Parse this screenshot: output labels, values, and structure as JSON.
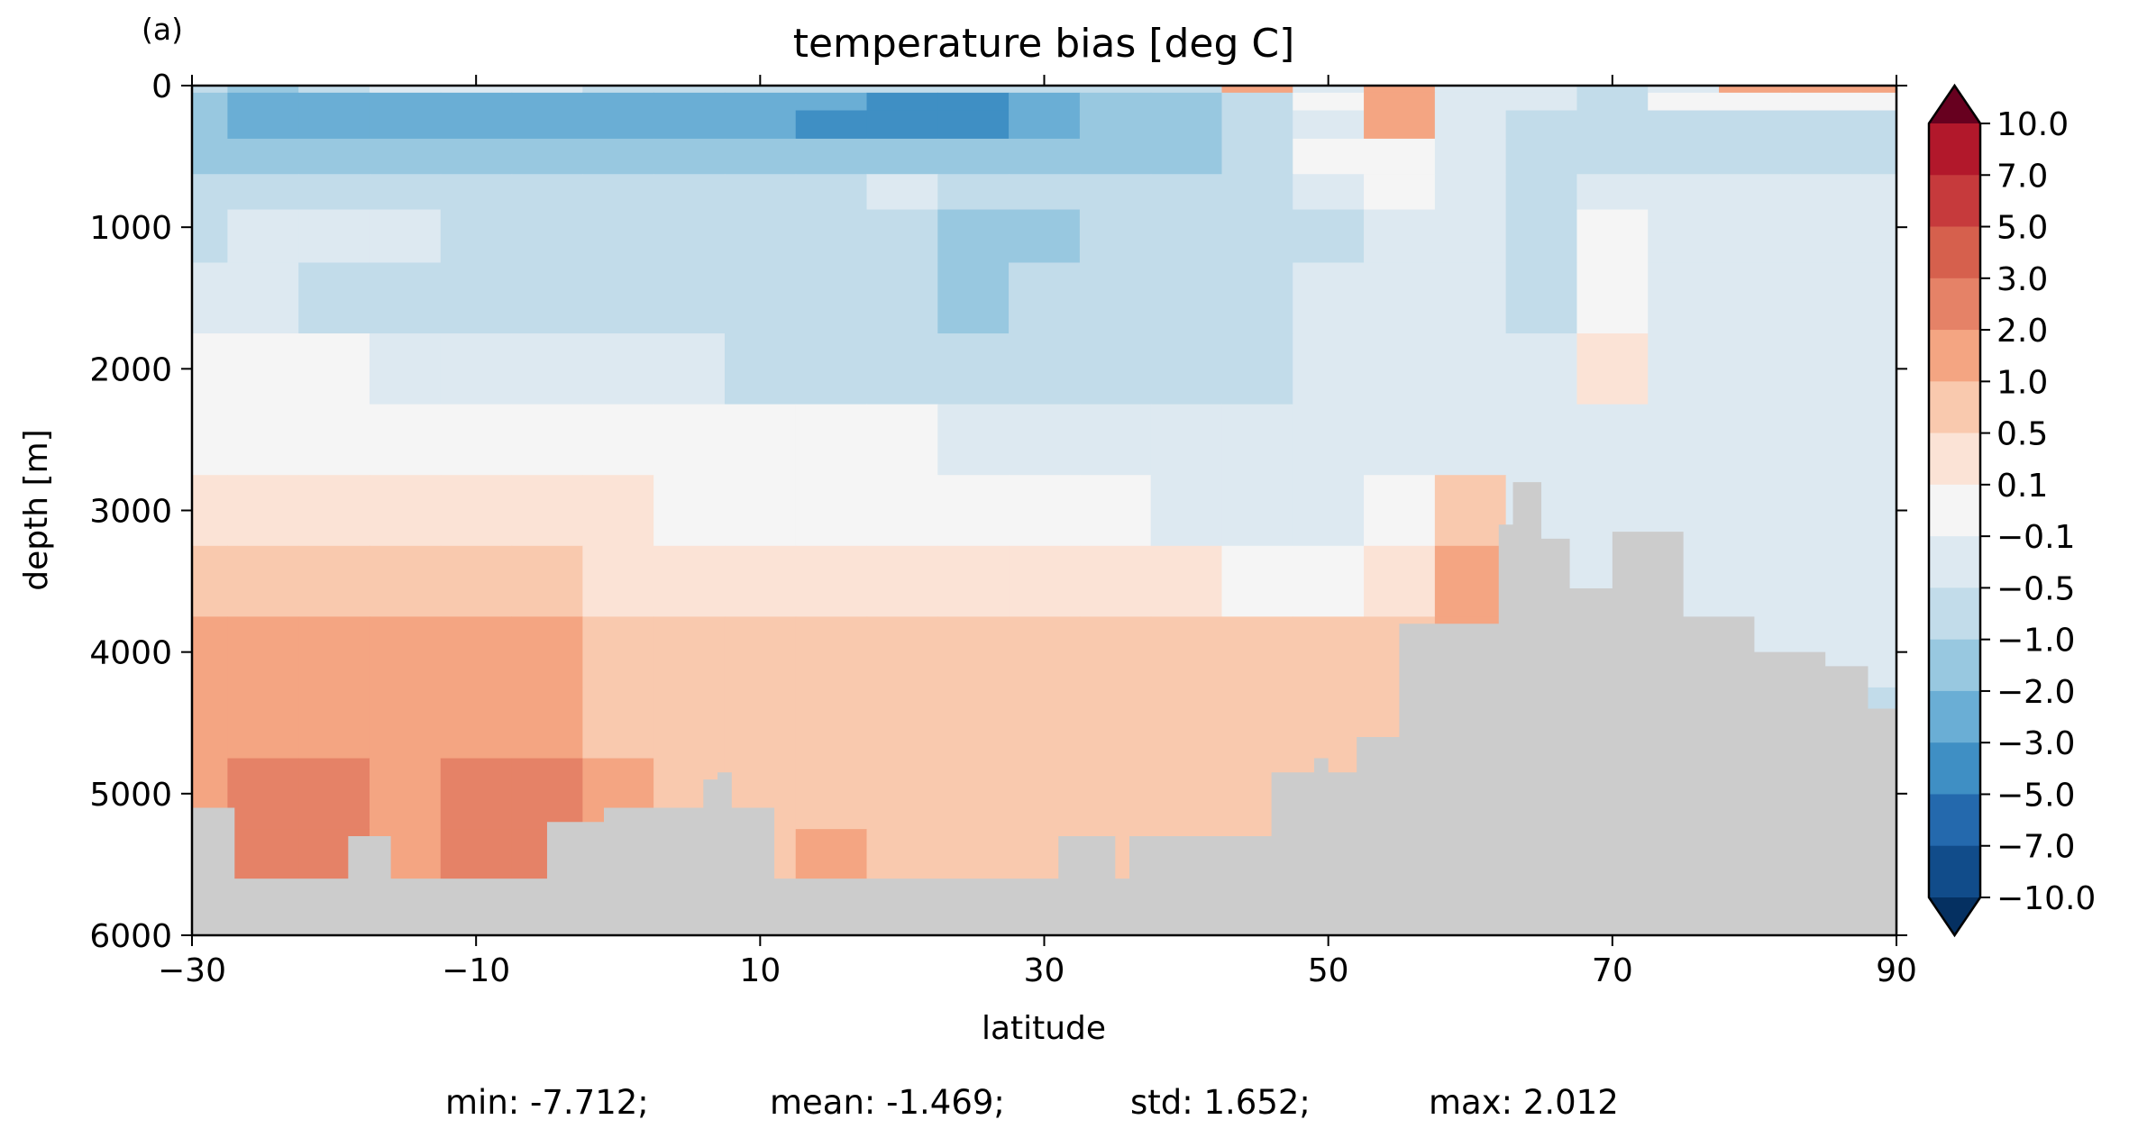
{
  "panel_label": "(a)",
  "chart_data": {
    "type": "heatmap",
    "title": "temperature bias [deg C]",
    "xlabel": "latitude",
    "ylabel": "depth [m]",
    "xlim": [
      -30,
      90
    ],
    "ylim": [
      6000,
      0
    ],
    "x_ticks": [
      "−30",
      "−10",
      "10",
      "30",
      "50",
      "70",
      "90"
    ],
    "x_tick_values": [
      -30,
      -10,
      10,
      30,
      50,
      70,
      90
    ],
    "y_ticks": [
      "0",
      "1000",
      "2000",
      "3000",
      "4000",
      "5000",
      "6000"
    ],
    "y_tick_values": [
      0,
      1000,
      2000,
      3000,
      4000,
      5000,
      6000
    ],
    "colorbar": {
      "levels": [
        "10.0",
        "7.0",
        "5.0",
        "3.0",
        "2.0",
        "1.0",
        "0.5",
        "0.1",
        "−0.1",
        "−0.5",
        "−1.0",
        "−2.0",
        "−3.0",
        "−5.0",
        "−7.0",
        "−10.0"
      ],
      "colors": [
        "#860a24",
        "#b2182b",
        "#c63a3c",
        "#d6604d",
        "#e58267",
        "#f4a582",
        "#f9c9ae",
        "#fbe3d6",
        "#f5f5f5",
        "#dde9f1",
        "#c2dcea",
        "#98c8e0",
        "#6aaed5",
        "#3f8fc4",
        "#2469ad",
        "#114c8a"
      ],
      "over_color": "#67001f",
      "under_color": "#053061",
      "extend": "both"
    },
    "land_color": "#cccccc",
    "stats": {
      "min": "min: -7.712;",
      "mean": "mean: -1.469;",
      "std": "std: 1.652;",
      "max": "max: 2.012"
    },
    "bias_field": {
      "latitudes": [
        -30,
        -25,
        -20,
        -15,
        -10,
        -5,
        0,
        5,
        10,
        15,
        20,
        25,
        30,
        35,
        40,
        45,
        50,
        55,
        60,
        65,
        70,
        75,
        80,
        85,
        90
      ],
      "depths": [
        0,
        100,
        250,
        500,
        750,
        1000,
        1500,
        2000,
        2500,
        3000,
        3500,
        4000,
        4500,
        5000,
        5500,
        6000
      ],
      "values": [
        [
          -1.5,
          -2.5,
          -1.5,
          -1.0,
          -1.0,
          -1.0,
          -1.5,
          -1.5,
          -1.5,
          -1.5,
          -1.5,
          -1.5,
          -1.5,
          -1.5,
          -1.5,
          0.8,
          -1.0,
          0.5,
          -1.0,
          -1.0,
          -1.5,
          -1.0,
          0.5,
          0.5,
          0.5
        ],
        [
          -2.5,
          -3.5,
          -4.0,
          -4.5,
          -5.0,
          -4.5,
          -4.0,
          -3.5,
          -4.0,
          -5.0,
          -5.5,
          -6.0,
          -4.0,
          -3.0,
          -2.5,
          -1.5,
          -0.5,
          0.8,
          -1.0,
          -1.0,
          -1.5,
          -0.5,
          -0.5,
          -0.3,
          -0.3
        ],
        [
          -2.5,
          -3.5,
          -4.0,
          -4.5,
          -4.5,
          -4.5,
          -4.5,
          -4.5,
          -5.0,
          -5.5,
          -6.5,
          -5.5,
          -4.0,
          -3.0,
          -2.5,
          -1.5,
          -1.0,
          0.6,
          -1.0,
          -1.5,
          -1.5,
          -1.5,
          -1.5,
          -1.5,
          -1.5
        ],
        [
          -2.5,
          -2.5,
          -2.5,
          -2.5,
          -2.5,
          -2.5,
          -2.5,
          -2.5,
          -3.0,
          -3.0,
          -3.0,
          -3.0,
          -2.5,
          -2.5,
          -2.5,
          -1.8,
          -0.5,
          -0.2,
          -1.0,
          -1.5,
          -1.5,
          -1.5,
          -1.5,
          -1.5,
          -1.5
        ],
        [
          -1.5,
          -1.5,
          -1.5,
          -1.5,
          -1.5,
          -1.5,
          -1.5,
          -1.5,
          -1.5,
          -1.5,
          -0.8,
          -1.5,
          -1.5,
          -1.5,
          -1.5,
          -1.5,
          -0.8,
          -0.3,
          -0.8,
          -1.5,
          -1.0,
          -0.8,
          -0.8,
          -0.8,
          -0.8
        ],
        [
          -1.5,
          -0.8,
          -0.8,
          -0.8,
          -1.5,
          -1.5,
          -1.5,
          -1.5,
          -1.5,
          -1.5,
          -1.5,
          -2.2,
          -2.5,
          -1.8,
          -1.5,
          -1.5,
          -1.5,
          -0.8,
          -0.8,
          -1.5,
          -0.5,
          -0.8,
          -0.8,
          -0.8,
          -0.8
        ],
        [
          -0.8,
          -0.8,
          -1.5,
          -1.5,
          -1.5,
          -1.5,
          -1.5,
          -1.5,
          -1.5,
          -1.5,
          -1.5,
          -2.6,
          -1.5,
          -1.5,
          -1.5,
          -1.5,
          -0.8,
          -0.8,
          -0.8,
          -1.5,
          -0.2,
          -0.8,
          -0.8,
          -0.8,
          -0.8
        ],
        [
          -0.3,
          -0.3,
          -0.3,
          -0.8,
          -0.8,
          -0.8,
          -0.8,
          -0.8,
          -1.5,
          -1.5,
          -1.5,
          -1.5,
          -1.5,
          -1.5,
          -1.5,
          -1.5,
          -0.8,
          -0.8,
          -0.8,
          -0.8,
          -0.1,
          -0.8,
          -0.8,
          -0.8,
          -0.8
        ],
        [
          -0.3,
          -0.3,
          -0.3,
          -0.3,
          -0.3,
          -0.3,
          -0.3,
          -0.3,
          -0.3,
          -0.3,
          -0.3,
          -0.8,
          -0.8,
          -0.8,
          -0.8,
          -0.8,
          -0.8,
          -0.8,
          -0.8,
          -0.8,
          -0.8,
          -0.8,
          -0.8,
          -0.8,
          -0.8
        ],
        [
          0.0,
          0.0,
          0.0,
          0.0,
          0.0,
          0.0,
          0.0,
          -0.3,
          -0.3,
          -0.3,
          -0.3,
          -0.3,
          -0.3,
          -0.3,
          -0.8,
          -0.8,
          -0.8,
          -0.3,
          0.3,
          -0.8,
          -0.8,
          -0.8,
          -0.8,
          -0.8,
          -0.8
        ],
        [
          0.3,
          0.3,
          0.3,
          0.3,
          0.3,
          0.3,
          0.0,
          0.0,
          0.0,
          0.0,
          0.0,
          0.0,
          0.0,
          0.0,
          0.0,
          -0.3,
          -0.3,
          0.0,
          0.7,
          -0.8,
          -0.8,
          -0.8,
          -0.8,
          -0.8,
          -0.8
        ],
        [
          0.7,
          0.7,
          0.7,
          0.7,
          0.7,
          0.7,
          0.3,
          0.3,
          0.3,
          0.3,
          0.3,
          0.3,
          0.3,
          0.3,
          0.3,
          0.3,
          0.3,
          0.3,
          0.7,
          -0.8,
          -0.8,
          -0.8,
          -0.8,
          -0.8,
          -0.8
        ],
        [
          0.7,
          0.7,
          0.7,
          0.7,
          0.7,
          0.7,
          0.3,
          0.3,
          0.3,
          0.3,
          0.3,
          0.3,
          0.3,
          0.3,
          0.3,
          0.3,
          0.3,
          0.3,
          0.7,
          -0.8,
          -0.8,
          -0.8,
          -0.8,
          -0.8,
          -1.5
        ],
        [
          0.7,
          1.5,
          1.5,
          0.7,
          1.5,
          1.5,
          0.7,
          0.3,
          0.3,
          0.3,
          0.3,
          0.3,
          0.3,
          0.3,
          0.3,
          0.3,
          0.3,
          0.3,
          0.7,
          -0.8,
          -0.8,
          -0.8,
          -0.8,
          -0.8,
          -1.5
        ],
        [
          0.7,
          1.5,
          1.5,
          0.7,
          1.5,
          1.5,
          0.7,
          0.3,
          0.3,
          0.7,
          0.3,
          0.3,
          0.3,
          0.3,
          0.3,
          0.3,
          0.3,
          0.3,
          0.7,
          -0.8,
          -0.8,
          -0.8,
          -0.8,
          -0.8,
          -1.5
        ],
        [
          0.7,
          1.5,
          1.5,
          0.7,
          1.5,
          1.5,
          0.7,
          0.3,
          0.3,
          0.7,
          0.3,
          0.3,
          0.3,
          0.3,
          0.3,
          0.3,
          0.3,
          0.3,
          0.7,
          -0.8,
          -0.8,
          -0.8,
          -0.8,
          -0.8,
          -1.5
        ]
      ]
    },
    "land_mask": {
      "latitude": [
        -30,
        -28,
        -27,
        -24,
        -23,
        -20,
        -19,
        -16,
        -14,
        -11,
        -9,
        -7,
        -6,
        -5,
        -2,
        -1,
        0,
        2,
        3,
        5,
        6,
        7,
        8,
        9,
        10,
        11,
        15,
        17,
        20,
        25,
        30,
        31,
        35,
        36,
        40,
        45,
        46,
        48,
        49,
        50,
        52,
        53,
        55,
        56,
        60,
        62,
        63,
        65,
        67,
        68,
        70,
        72,
        75,
        78,
        80,
        82,
        85,
        88,
        90
      ],
      "depth": [
        5100,
        5100,
        5600,
        5600,
        5600,
        5600,
        5300,
        5600,
        5600,
        5600,
        5600,
        5600,
        5600,
        5200,
        5200,
        5100,
        5100,
        5100,
        5100,
        5100,
        4900,
        4850,
        5100,
        5100,
        5100,
        5600,
        5600,
        5600,
        5600,
        5600,
        5600,
        5300,
        5600,
        5300,
        5300,
        5300,
        4850,
        4850,
        4750,
        4850,
        4600,
        4600,
        3800,
        3800,
        3800,
        3100,
        2800,
        3200,
        3550,
        3550,
        3150,
        3150,
        3750,
        3750,
        4000,
        4000,
        4100,
        4400,
        4400
      ]
    }
  }
}
